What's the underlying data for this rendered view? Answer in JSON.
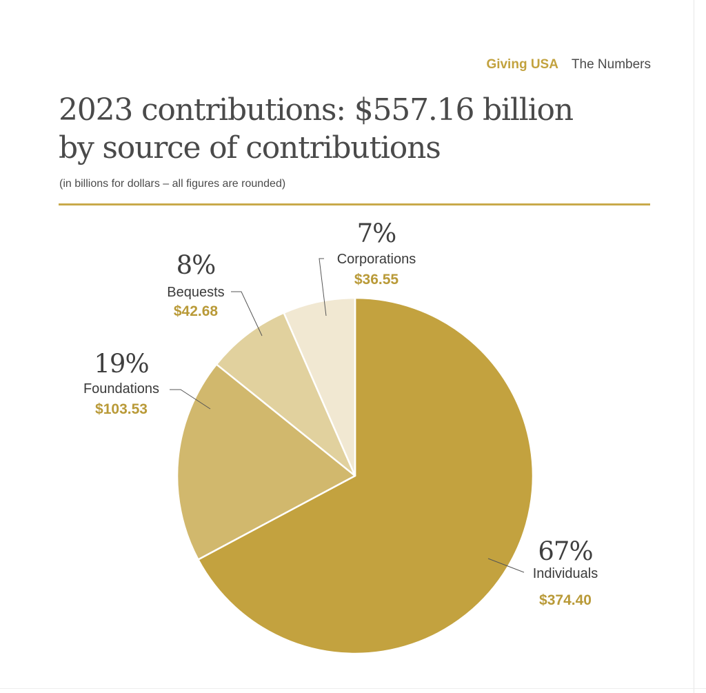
{
  "header": {
    "brand": "Giving USA",
    "section": "The Numbers"
  },
  "chart_data": {
    "type": "pie",
    "title_line1": "2023 contributions: $557.16 billion",
    "title_line2": "by source of contributions",
    "subtitle": "(in billions for dollars – all figures are rounded)",
    "total": 557.16,
    "unit": "billions of dollars",
    "slices": [
      {
        "label": "Individuals",
        "value": 374.4,
        "value_label": "$374.40",
        "percent_label": "67%",
        "color": "#c3a23f"
      },
      {
        "label": "Foundations",
        "value": 103.53,
        "value_label": "$103.53",
        "percent_label": "19%",
        "color": "#d1b86d"
      },
      {
        "label": "Bequests",
        "value": 42.68,
        "value_label": "$42.68",
        "percent_label": "8%",
        "color": "#e1d19e"
      },
      {
        "label": "Corporations",
        "value": 36.55,
        "value_label": "$36.55",
        "percent_label": "7%",
        "color": "#f1e8d2"
      }
    ]
  }
}
